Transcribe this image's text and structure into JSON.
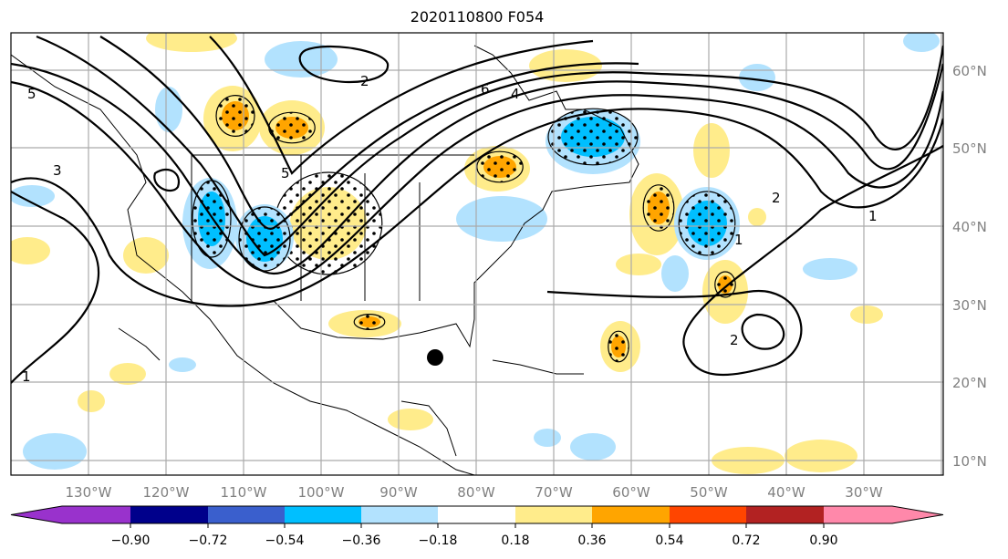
{
  "title": "2020110800 F054",
  "lon_labels": [
    "130°W",
    "120°W",
    "110°W",
    "100°W",
    "90°W",
    "80°W",
    "70°W",
    "60°W",
    "50°W",
    "40°W",
    "30°W"
  ],
  "lat_labels": [
    "60°N",
    "50°N",
    "40°N",
    "30°N",
    "20°N",
    "10°N"
  ],
  "contour_labels": [
    "5",
    "3",
    "1",
    "2",
    "6",
    "4",
    "5",
    "2",
    "1",
    "2",
    "1"
  ],
  "colorbar": {
    "ticks": [
      "−0.90",
      "−0.72",
      "−0.54",
      "−0.36",
      "−0.18",
      "0.18",
      "0.36",
      "0.54",
      "0.72",
      "0.90"
    ],
    "colors": [
      "#9932cc",
      "#00008b",
      "#3a5fcd",
      "#00bfff",
      "#b2e2fe",
      "#ffffff",
      "#ffec8b",
      "#ffa500",
      "#ff4500",
      "#b22222",
      "#ff88aa"
    ]
  },
  "colors": {
    "pos1": "#ffec8b",
    "pos2": "#ffa500",
    "neg1": "#b2e2fe",
    "neg2": "#00bfff",
    "grid": "#aaaaaa"
  }
}
